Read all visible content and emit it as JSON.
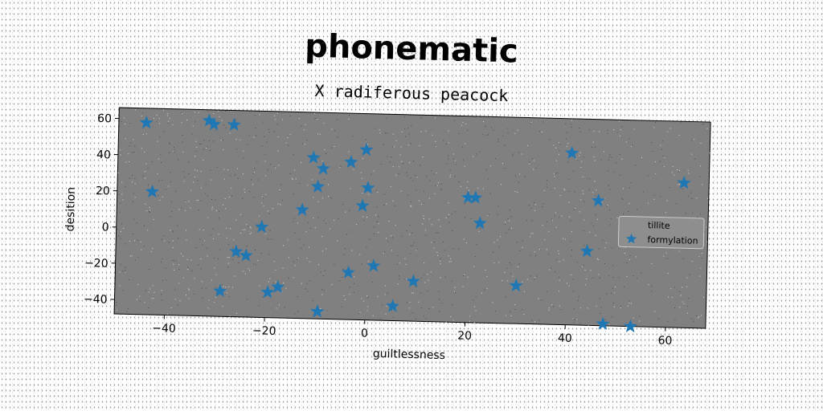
{
  "figure": {
    "title": "phonematic",
    "subtitle": "X radiferous peacock"
  },
  "chart_data": {
    "type": "scatter",
    "xlabel": "guiltlessness",
    "ylabel": "desition",
    "xlim": [
      -50,
      68
    ],
    "ylim": [
      -48,
      66
    ],
    "xticks": [
      -40,
      -20,
      0,
      20,
      40,
      60
    ],
    "yticks": [
      -40,
      -20,
      0,
      20,
      40,
      60
    ],
    "xtick_labels": [
      "−40",
      "−20",
      "0",
      "20",
      "40",
      "60"
    ],
    "ytick_labels": [
      "−40",
      "−20",
      "0",
      "20",
      "40",
      "60"
    ],
    "grid": false,
    "background_color": "#808080",
    "legend": {
      "placement": "right",
      "entries": [
        "tillite",
        "formylation"
      ]
    },
    "series": [
      {
        "name": "tillite",
        "marker": "none",
        "color": "#808080",
        "points": []
      },
      {
        "name": "formylation",
        "marker": "star",
        "color": "#1f77b4",
        "points": [
          {
            "x": -44.5,
            "y": 58
          },
          {
            "x": -32,
            "y": 60
          },
          {
            "x": -31,
            "y": 58
          },
          {
            "x": -27,
            "y": 58
          },
          {
            "x": -43,
            "y": 20
          },
          {
            "x": -11,
            "y": 41
          },
          {
            "x": -9,
            "y": 35
          },
          {
            "x": -3.5,
            "y": 39
          },
          {
            "x": -0.5,
            "y": 46
          },
          {
            "x": 0,
            "y": 25
          },
          {
            "x": -1,
            "y": 15
          },
          {
            "x": -10,
            "y": 25
          },
          {
            "x": -13,
            "y": 12
          },
          {
            "x": -21,
            "y": 2
          },
          {
            "x": -26,
            "y": -12
          },
          {
            "x": -24,
            "y": -14
          },
          {
            "x": -29,
            "y": -34
          },
          {
            "x": -19.5,
            "y": -34
          },
          {
            "x": -17.5,
            "y": -31
          },
          {
            "x": -9.5,
            "y": -44
          },
          {
            "x": -3.5,
            "y": -22
          },
          {
            "x": 1.5,
            "y": -18
          },
          {
            "x": 5.5,
            "y": -40
          },
          {
            "x": 9.5,
            "y": -26
          },
          {
            "x": 20,
            "y": 21
          },
          {
            "x": 21.5,
            "y": 21
          },
          {
            "x": 22.5,
            "y": 7
          },
          {
            "x": 30,
            "y": -27
          },
          {
            "x": 40.5,
            "y": 47
          },
          {
            "x": 46,
            "y": 21
          },
          {
            "x": 44,
            "y": -7
          },
          {
            "x": 47.5,
            "y": -47
          },
          {
            "x": 53,
            "y": -48
          },
          {
            "x": 63,
            "y": 32
          }
        ]
      }
    ]
  }
}
